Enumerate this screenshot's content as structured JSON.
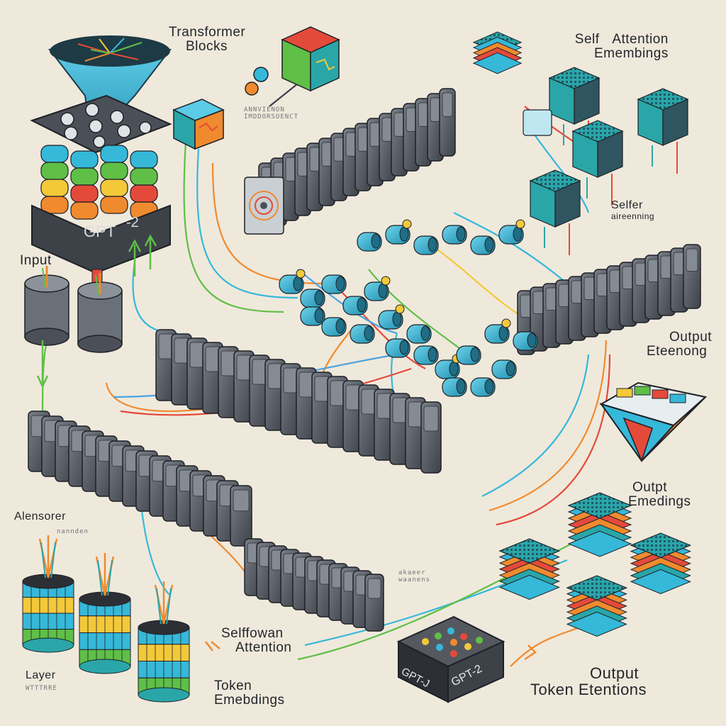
{
  "diagram": {
    "labels": {
      "transformer_blocks": {
        "line1": "Transformer",
        "line2": "Blocks"
      },
      "self_attention_embeddings": {
        "line1": "Self",
        "line2": "Attention",
        "line3": "Emembings"
      },
      "input": "Input",
      "selfer_layer_caption": {
        "line1": "Selfer",
        "line2": "aireenning"
      },
      "output_eterong": {
        "line1": "Output",
        "line2": "Eteenong"
      },
      "alensorer": "Alensorer",
      "outpt_emedings": {
        "line1": "Outpt",
        "line2": "Emedings"
      },
      "selffowan_attention": {
        "line1": "Selffowan",
        "line2": "Attention"
      },
      "token_emebdings": {
        "line1": "Token",
        "line2": "Emebdings"
      },
      "layer": "Layer",
      "output_token_etentions": {
        "line1": "Output",
        "line2": "Token Etentions"
      },
      "gpt_chip_left": "GPT-J",
      "gpt_chip_right": "GPT-2",
      "gpt_block_left": "GPT",
      "gpt_block_right": "-2"
    },
    "faint_captions": {
      "under_transformer_1": "ANNVIENON",
      "under_transformer_2": "IMDDORSOENCT",
      "under_alensorer": "nannden",
      "center_small_1": "akaeer",
      "center_small_2": "waanens",
      "under_layer": "WTTTRRE"
    },
    "colors": {
      "background": "#efe9dc",
      "block_dark": "#4b5058",
      "block_mid": "#646a73",
      "cyan": "#36b8d9",
      "teal": "#2aa6a8",
      "orange": "#f08a2e",
      "yellow": "#f3c93a",
      "green": "#5fbf47",
      "red": "#e44a3a",
      "wire_blue": "#4aa3e0"
    }
  }
}
